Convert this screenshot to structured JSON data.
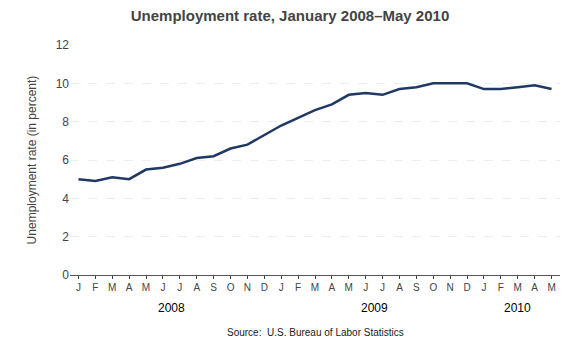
{
  "chart_data": {
    "type": "line",
    "title": "Unemployment rate, January 2008–May 2010",
    "ylabel": "Unemployment rate (in percent)",
    "categories": [
      "J",
      "F",
      "M",
      "A",
      "M",
      "J",
      "J",
      "A",
      "S",
      "O",
      "N",
      "D",
      "J",
      "F",
      "M",
      "A",
      "M",
      "J",
      "J",
      "A",
      "S",
      "O",
      "N",
      "D",
      "J",
      "F",
      "M",
      "A",
      "M"
    ],
    "values": [
      5.0,
      4.9,
      5.1,
      5.0,
      5.5,
      5.6,
      5.8,
      6.1,
      6.2,
      6.6,
      6.8,
      7.3,
      7.8,
      8.2,
      8.6,
      8.9,
      9.4,
      9.5,
      9.4,
      9.7,
      9.8,
      10.0,
      10.0,
      10.0,
      9.7,
      9.7,
      9.8,
      9.9,
      9.7
    ],
    "color": "#1F3864",
    "ylim": [
      0,
      12
    ],
    "yticks": [
      0,
      2,
      4,
      6,
      8,
      10,
      12
    ],
    "grid": true,
    "annotations": [
      {
        "text": "2008",
        "x": 5.5
      },
      {
        "text": "2009",
        "x": 17.5
      },
      {
        "text": "2010",
        "x": 26.0
      },
      {
        "text": "Source:  U.S. Bureau of Labor Statistics"
      }
    ]
  }
}
